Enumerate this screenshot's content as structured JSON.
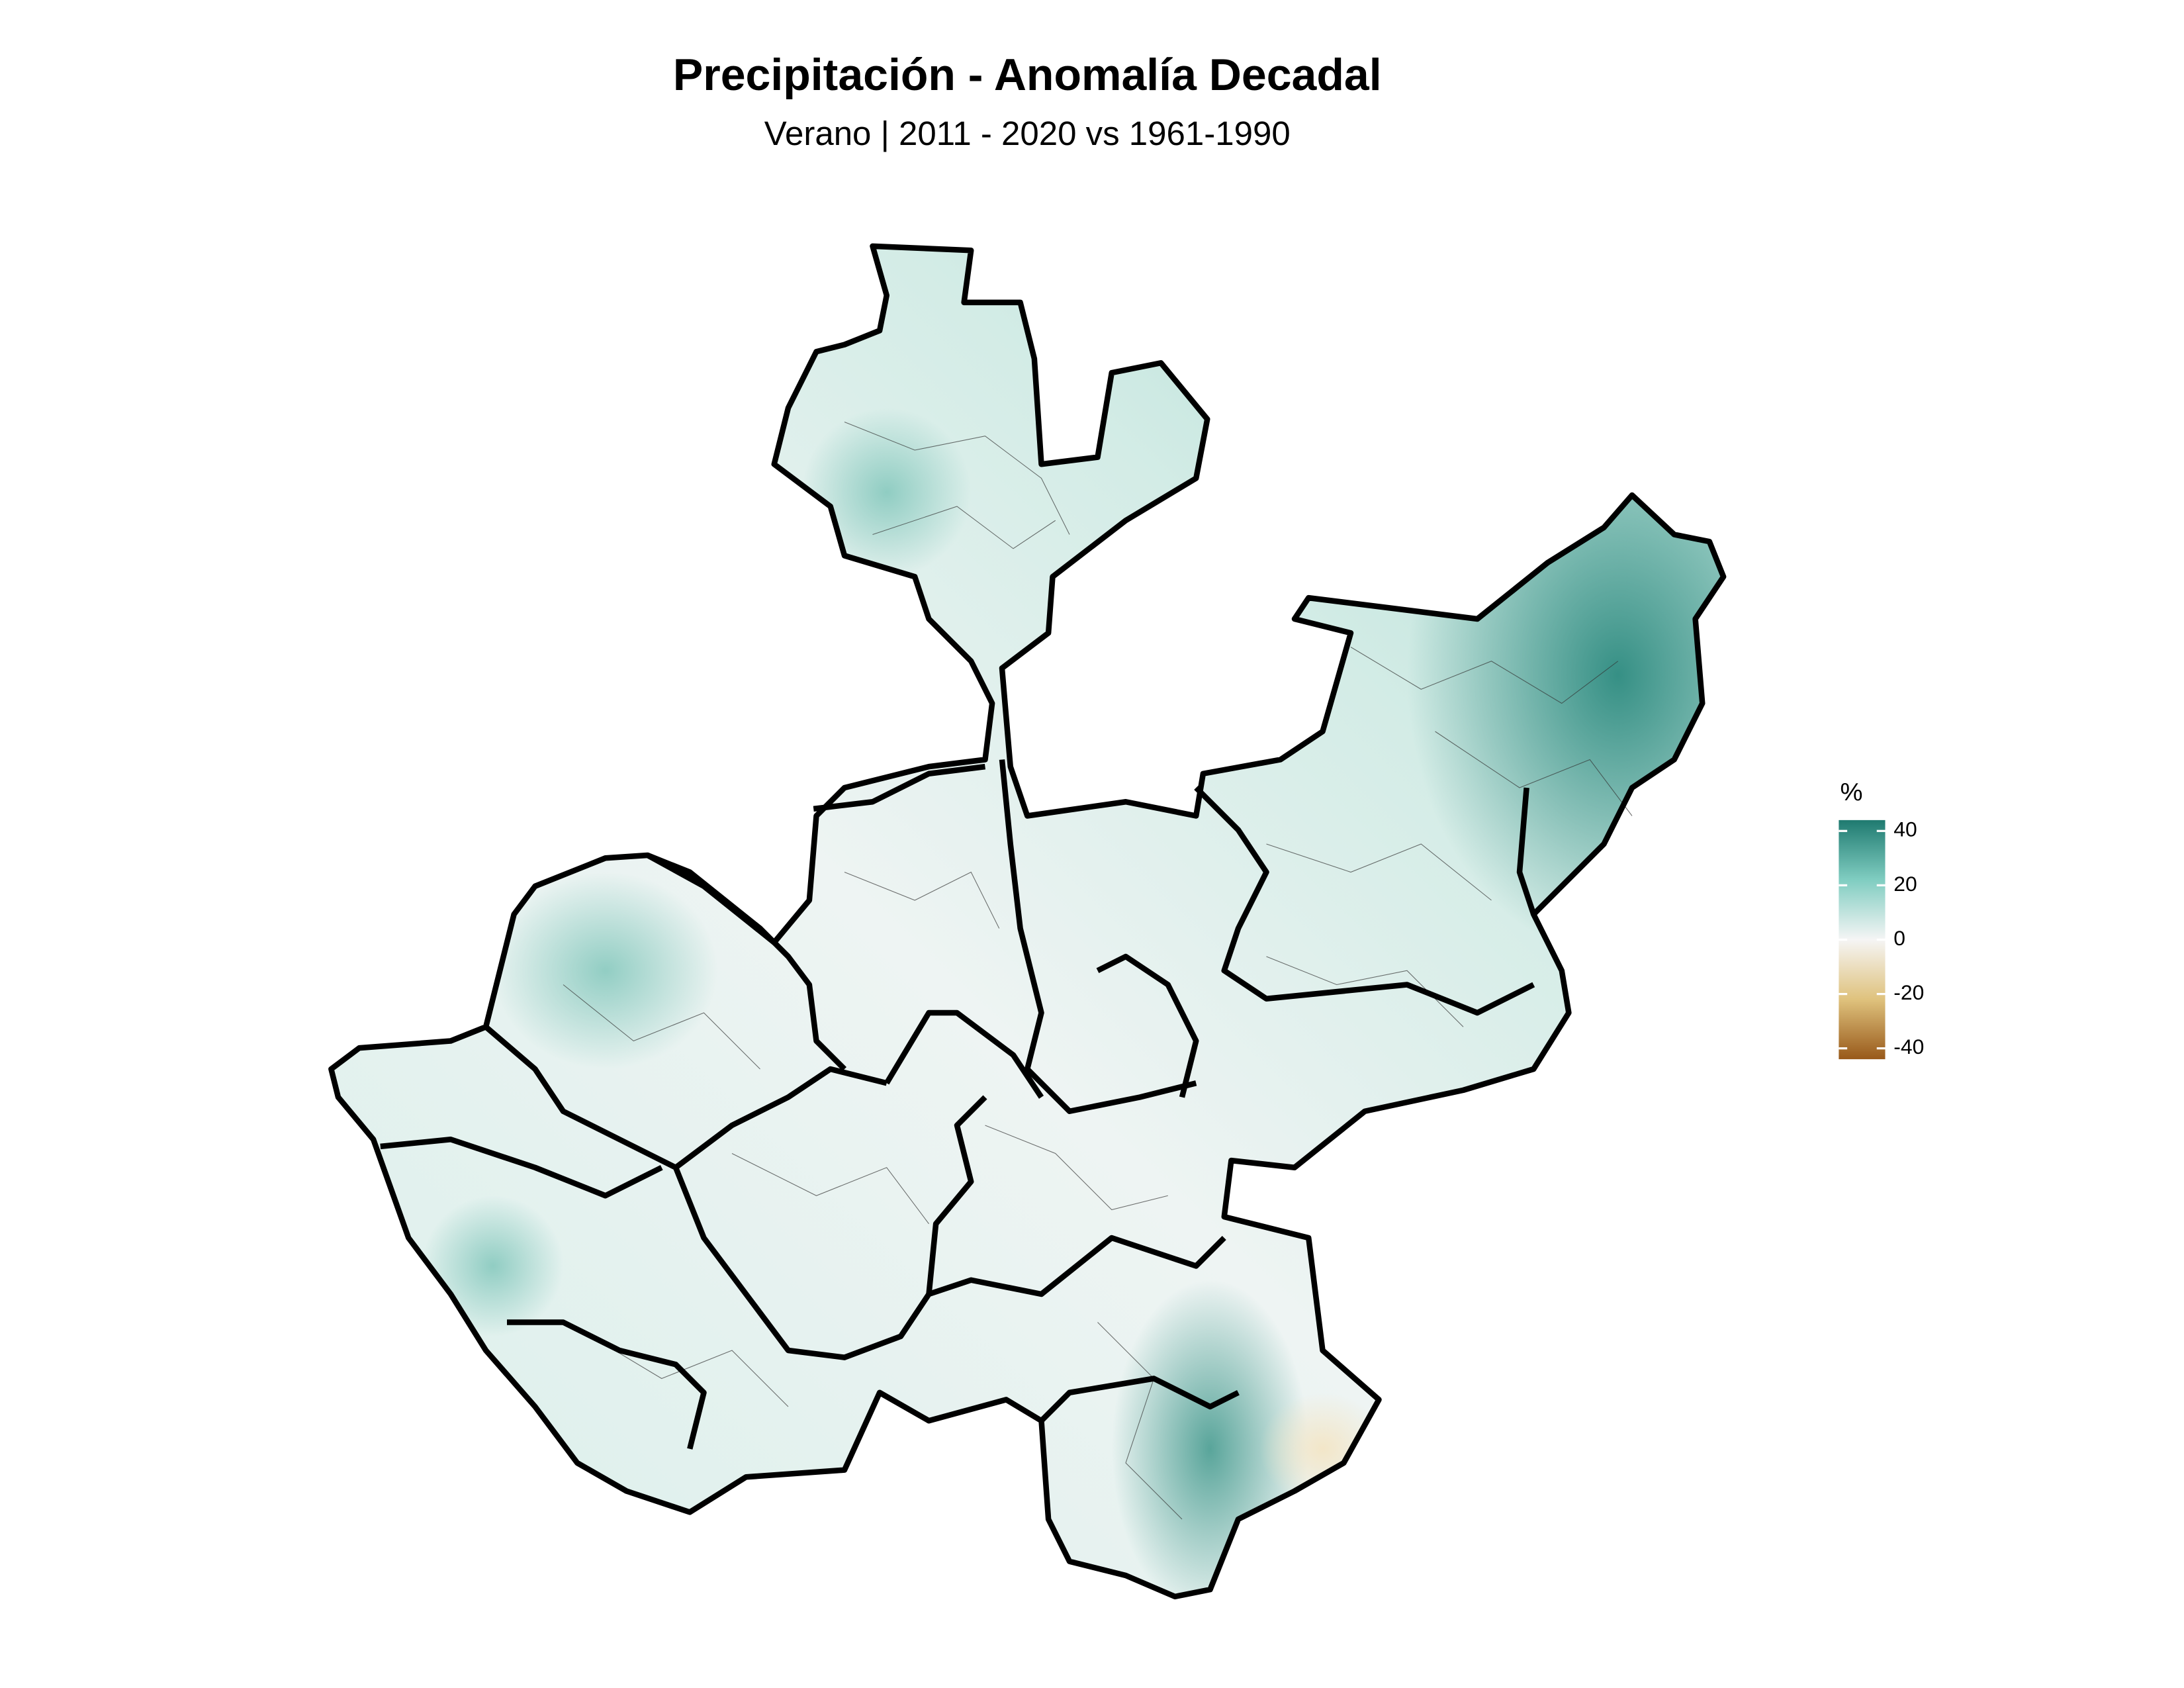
{
  "title": "Precipitación - Anomalía Decadal",
  "subtitle": "Verano | 2011 - 2020 vs 1961-1990",
  "legend": {
    "title": "%",
    "ticks": [
      40,
      20,
      0,
      -20,
      -40
    ],
    "lim": [
      -44,
      44
    ],
    "colors": [
      "#98591a",
      "#dfc27d",
      "#f5f5f5",
      "#80cdc1",
      "#1f7a70"
    ]
  }
}
